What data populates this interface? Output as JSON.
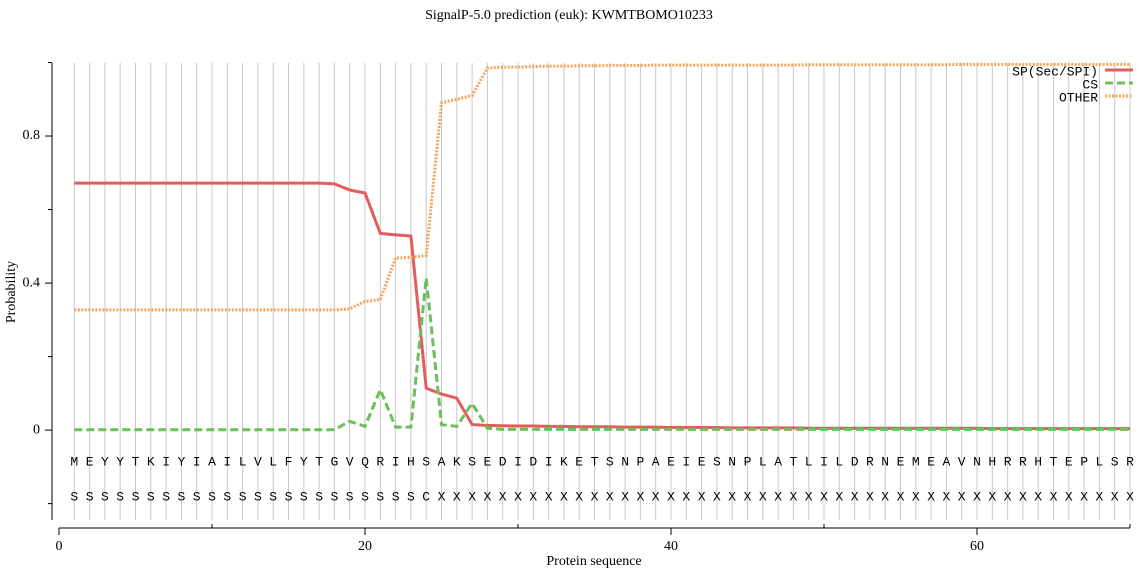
{
  "chart_data": {
    "type": "line",
    "title": "SignalP-5.0 prediction (euk):  KWMTBOMO10233",
    "x_label": "Protein sequence",
    "y_label": "Probability",
    "xlim": [
      0,
      70
    ],
    "xticks": [
      0,
      20,
      40,
      60
    ],
    "xminor_ticks": [
      10,
      30,
      50,
      70
    ],
    "ylim": [
      -0.25,
      1.0
    ],
    "yticks": [
      0,
      0.4,
      0.8
    ],
    "yminor_ticks": [
      -0.2,
      0.2,
      0.6,
      1.0
    ],
    "grid": true,
    "legend": "upper right",
    "x": [
      1,
      2,
      3,
      4,
      5,
      6,
      7,
      8,
      9,
      10,
      11,
      12,
      13,
      14,
      15,
      16,
      17,
      18,
      19,
      20,
      21,
      22,
      23,
      24,
      25,
      26,
      27,
      28,
      29,
      30,
      31,
      32,
      33,
      34,
      35,
      36,
      37,
      38,
      39,
      40,
      41,
      42,
      43,
      44,
      45,
      46,
      47,
      48,
      49,
      50,
      51,
      52,
      53,
      54,
      55,
      56,
      57,
      58,
      59,
      60,
      61,
      62,
      63,
      64,
      65,
      66,
      67,
      68,
      69,
      70
    ],
    "sequence": [
      "M",
      "E",
      "Y",
      "Y",
      "T",
      "K",
      "I",
      "Y",
      "I",
      "A",
      "I",
      "L",
      "V",
      "L",
      "F",
      "Y",
      "T",
      "G",
      "V",
      "Q",
      "R",
      "I",
      "H",
      "S",
      "A",
      "K",
      "S",
      "E",
      "D",
      "I",
      "D",
      "I",
      "K",
      "E",
      "T",
      "S",
      "N",
      "P",
      "A",
      "E",
      "I",
      "E",
      "S",
      "N",
      "P",
      "L",
      "A",
      "T",
      "L",
      "I",
      "L",
      "D",
      "R",
      "N",
      "E",
      "M",
      "E",
      "A",
      "V",
      "N",
      "H",
      "R",
      "R",
      "H",
      "T",
      "E",
      "P",
      "L",
      "S",
      "R"
    ],
    "prediction": [
      "S",
      "S",
      "S",
      "S",
      "S",
      "S",
      "S",
      "S",
      "S",
      "S",
      "S",
      "S",
      "S",
      "S",
      "S",
      "S",
      "S",
      "S",
      "S",
      "S",
      "S",
      "S",
      "S",
      "C",
      "X",
      "X",
      "X",
      "X",
      "X",
      "X",
      "X",
      "X",
      "X",
      "X",
      "X",
      "X",
      "X",
      "X",
      "X",
      "X",
      "X",
      "X",
      "X",
      "X",
      "X",
      "X",
      "X",
      "X",
      "X",
      "X",
      "X",
      "X",
      "X",
      "X",
      "X",
      "X",
      "X",
      "X",
      "X",
      "X",
      "X",
      "X",
      "X",
      "X",
      "X",
      "X",
      "X",
      "X",
      "X",
      "X"
    ],
    "series": [
      {
        "name": "SP(Sec/SPI)",
        "color": "#e35d5d",
        "dash": "solid",
        "values": [
          0.672,
          0.672,
          0.672,
          0.672,
          0.672,
          0.672,
          0.672,
          0.672,
          0.672,
          0.672,
          0.672,
          0.672,
          0.672,
          0.672,
          0.672,
          0.672,
          0.672,
          0.67,
          0.653,
          0.645,
          0.535,
          0.531,
          0.528,
          0.114,
          0.098,
          0.087,
          0.015,
          0.013,
          0.012,
          0.011,
          0.011,
          0.01,
          0.01,
          0.009,
          0.009,
          0.009,
          0.008,
          0.008,
          0.008,
          0.007,
          0.007,
          0.007,
          0.007,
          0.006,
          0.006,
          0.006,
          0.006,
          0.006,
          0.005,
          0.005,
          0.005,
          0.005,
          0.005,
          0.005,
          0.005,
          0.005,
          0.005,
          0.005,
          0.005,
          0.005,
          0.004,
          0.004,
          0.004,
          0.004,
          0.004,
          0.004,
          0.004,
          0.004,
          0.004,
          0.004
        ]
      },
      {
        "name": "CS",
        "color": "#6cbf5a",
        "dash": "dashed",
        "values": [
          0.001,
          0.001,
          0.001,
          0.001,
          0.001,
          0.001,
          0.001,
          0.001,
          0.001,
          0.001,
          0.001,
          0.001,
          0.001,
          0.001,
          0.001,
          0.001,
          0.001,
          0.001,
          0.024,
          0.01,
          0.11,
          0.008,
          0.008,
          0.414,
          0.015,
          0.01,
          0.073,
          0.005,
          0.002,
          0.002,
          0.002,
          0.002,
          0.002,
          0.002,
          0.002,
          0.002,
          0.002,
          0.002,
          0.002,
          0.002,
          0.002,
          0.002,
          0.002,
          0.002,
          0.002,
          0.002,
          0.002,
          0.002,
          0.002,
          0.002,
          0.002,
          0.002,
          0.002,
          0.002,
          0.002,
          0.002,
          0.002,
          0.002,
          0.002,
          0.002,
          0.002,
          0.002,
          0.002,
          0.002,
          0.002,
          0.002,
          0.002,
          0.002,
          0.002,
          0.002
        ]
      },
      {
        "name": "OTHER",
        "color": "#f5a55a",
        "dash": "dotted",
        "values": [
          0.327,
          0.327,
          0.327,
          0.327,
          0.327,
          0.327,
          0.327,
          0.327,
          0.327,
          0.327,
          0.327,
          0.327,
          0.327,
          0.327,
          0.327,
          0.327,
          0.327,
          0.327,
          0.33,
          0.35,
          0.355,
          0.468,
          0.47,
          0.475,
          0.89,
          0.9,
          0.91,
          0.985,
          0.987,
          0.988,
          0.989,
          0.99,
          0.99,
          0.991,
          0.991,
          0.992,
          0.992,
          0.992,
          0.993,
          0.993,
          0.993,
          0.993,
          0.993,
          0.993,
          0.993,
          0.993,
          0.993,
          0.993,
          0.994,
          0.994,
          0.994,
          0.994,
          0.994,
          0.994,
          0.994,
          0.994,
          0.994,
          0.994,
          0.995,
          0.995,
          0.995,
          0.995,
          0.995,
          0.995,
          0.995,
          0.995,
          0.995,
          0.995,
          0.995,
          0.995
        ]
      }
    ]
  }
}
